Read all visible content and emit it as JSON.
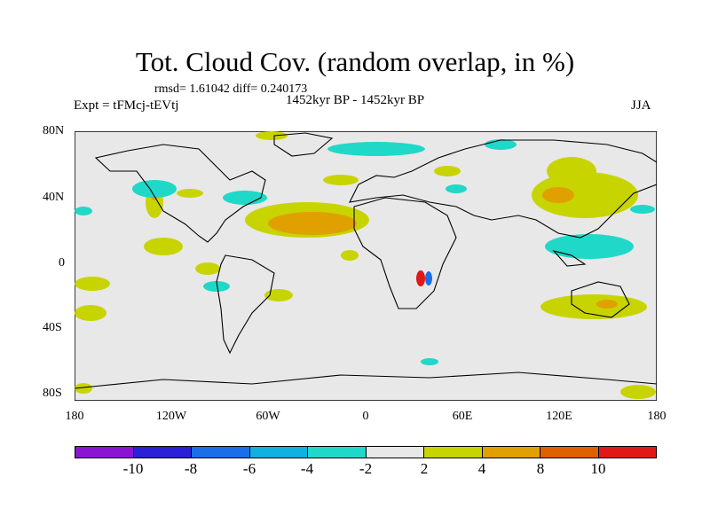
{
  "header": {
    "title": "Tot. Cloud Cov. (random overlap, in %)",
    "stats": "rmsd= 1.61042 diff= 0.240173",
    "experiment": "Expt = tFMcj-tEVtj",
    "period": "1452kyr BP - 1452kyr BP",
    "season": "JJA"
  },
  "axes": {
    "y_ticks": [
      "80N",
      "40N",
      "0",
      "40S",
      "80S"
    ],
    "x_ticks": [
      "180",
      "120W",
      "60W",
      "0",
      "60E",
      "120E",
      "180"
    ]
  },
  "colorbar": {
    "colors": [
      "#8a14d2",
      "#2a20d6",
      "#1a6ee8",
      "#10b0e0",
      "#20d8c8",
      "#e8e8e8",
      "#c8d400",
      "#e0a000",
      "#e06000",
      "#e01818"
    ],
    "labels": [
      "-10",
      "-8",
      "-6",
      "-4",
      "-2",
      "2",
      "4",
      "8",
      "10"
    ]
  },
  "map_colors": {
    "background": "#e8e8e8",
    "coast": "#000000"
  }
}
